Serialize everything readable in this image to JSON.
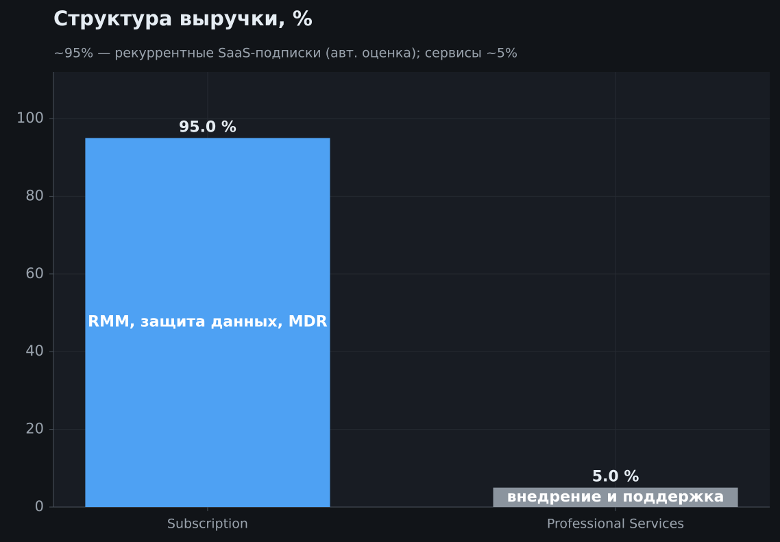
{
  "chart_data": {
    "type": "bar",
    "title": "Структура выручки, %",
    "subtitle": "~95% — рекуррентные SaaS-подписки (авт. оценка); сервисы ~5%",
    "categories": [
      "Subscription",
      "Professional Services"
    ],
    "values": [
      95,
      5
    ],
    "value_labels": [
      "95.0 %",
      "5.0 %"
    ],
    "bar_labels": [
      "RMM, защита данных, MDR",
      "внедрение и поддержка"
    ],
    "colors": [
      "#4ea1f3",
      "#8b949e"
    ],
    "ylim": [
      0,
      112
    ],
    "yticks": [
      0,
      20,
      40,
      60,
      80,
      100
    ],
    "grid": true
  }
}
